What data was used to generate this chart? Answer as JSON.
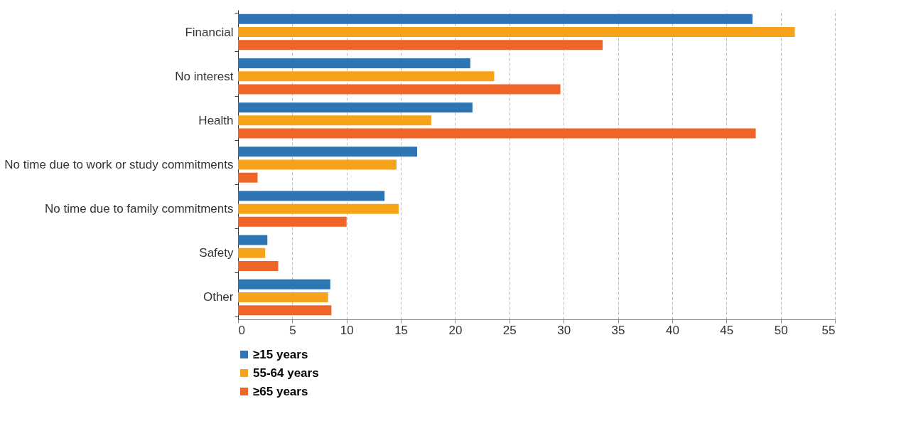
{
  "chart_data": {
    "type": "bar",
    "orientation": "horizontal",
    "categories": [
      "Financial",
      "No interest",
      "Health",
      "No time due to work or study commitments",
      "No time due to family commitments",
      "Safety",
      "Other"
    ],
    "series": [
      {
        "name": "≥15 years",
        "color": "#2e75b6",
        "values": [
          47.4,
          21.4,
          21.6,
          16.5,
          13.5,
          2.7,
          8.5
        ]
      },
      {
        "name": "55-64 years",
        "color": "#f7a21b",
        "values": [
          51.3,
          23.6,
          17.8,
          14.6,
          14.8,
          2.5,
          8.3
        ]
      },
      {
        "name": "≥65 years",
        "color": "#ef6527",
        "values": [
          33.6,
          29.7,
          47.7,
          1.8,
          10.0,
          3.7,
          8.6
        ]
      }
    ],
    "xlim": [
      0,
      55
    ],
    "xticks": [
      0,
      5,
      10,
      15,
      20,
      25,
      30,
      35,
      40,
      45,
      50,
      55
    ],
    "grid": "x",
    "legend": "bottom"
  }
}
